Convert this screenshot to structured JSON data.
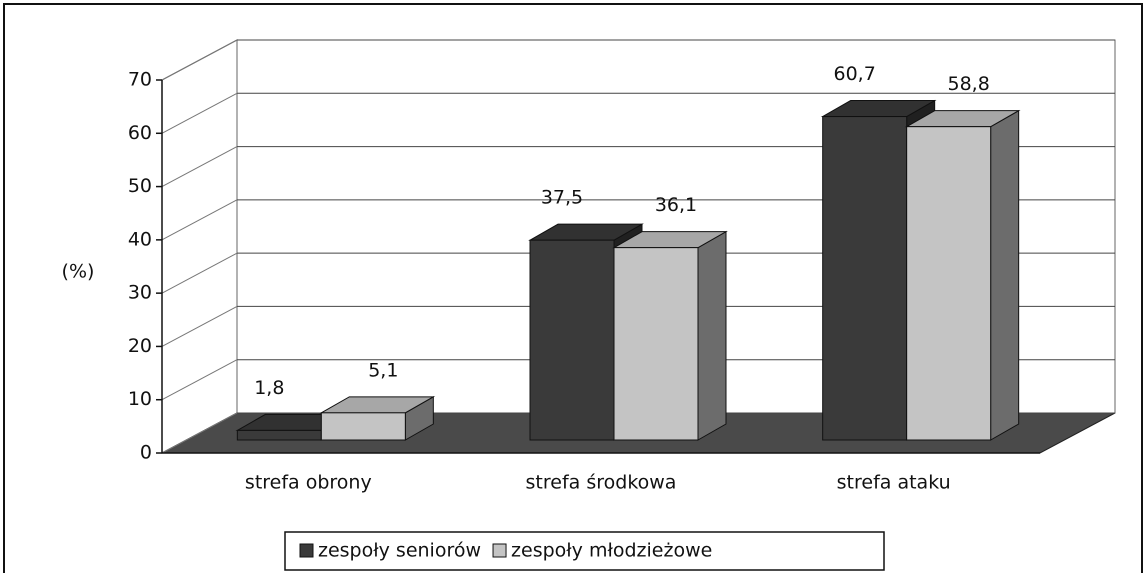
{
  "chart_data": {
    "type": "bar3d",
    "y_label": "(%)",
    "categories": [
      "strefa obrony",
      "strefa środkowa",
      "strefa ataku"
    ],
    "series": [
      {
        "name": "zespoły seniorów",
        "color": "#3a3a3a",
        "values": [
          1.8,
          37.5,
          60.7
        ],
        "value_labels": [
          "1,8",
          "37,5",
          "60,7"
        ]
      },
      {
        "name": "zespoły młodzieżowe",
        "color": "#c4c4c4",
        "values": [
          5.1,
          36.1,
          58.8
        ],
        "value_labels": [
          "5,1",
          "36,1",
          "58,8"
        ]
      }
    ],
    "ylim": [
      0,
      70
    ],
    "yticks": [
      0,
      10,
      20,
      30,
      40,
      50,
      60,
      70
    ],
    "grid": true,
    "legend": "bottom"
  }
}
